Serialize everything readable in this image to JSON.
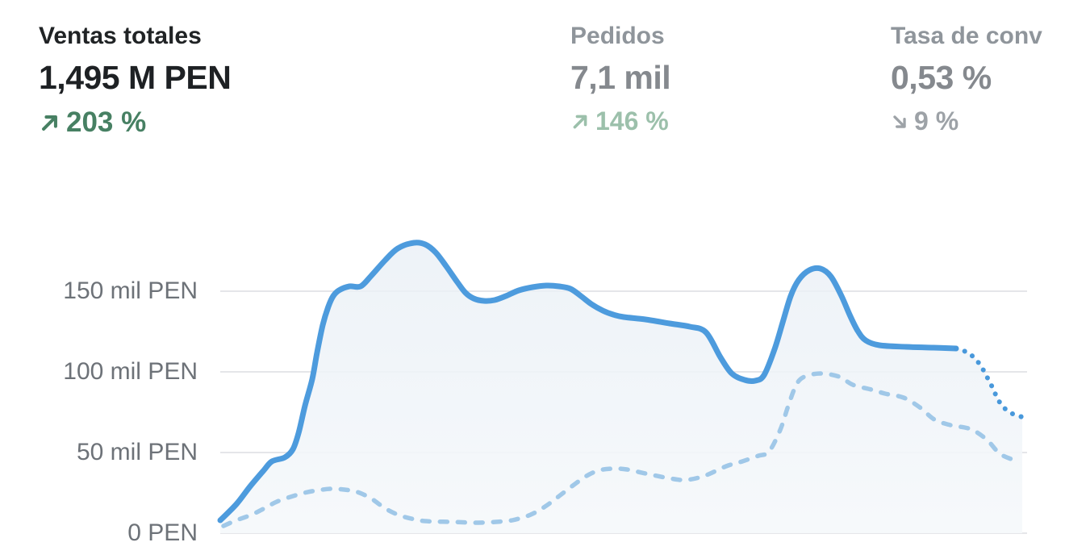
{
  "metrics": [
    {
      "id": "total-sales",
      "label": "Ventas totales",
      "value": "1,495 M PEN",
      "delta": "203 %",
      "trend": "up",
      "emphasis": "primary"
    },
    {
      "id": "orders",
      "label": "Pedidos",
      "value": "7,1 mil",
      "delta": "146 %",
      "trend": "up",
      "emphasis": "muted"
    },
    {
      "id": "conversion-rate",
      "label": "Tasa de conv",
      "value": "0,53 %",
      "delta": "9 %",
      "trend": "down",
      "emphasis": "muted"
    }
  ],
  "chart_data": {
    "type": "line",
    "title": "Ventas totales",
    "xlabel": "",
    "ylabel": "",
    "y_unit": "mil PEN",
    "ylim": [
      0,
      185
    ],
    "x_range": [
      0,
      1
    ],
    "grid": true,
    "legend_position": "none",
    "yticks": [
      {
        "value": 0,
        "label": "0 PEN"
      },
      {
        "value": 50,
        "label": "50 mil PEN"
      },
      {
        "value": 100,
        "label": "100 mil PEN"
      },
      {
        "value": 150,
        "label": "150 mil PEN"
      }
    ],
    "series": [
      {
        "name": "current_period",
        "style": "solid",
        "color": "#4d9bdd",
        "fill": true,
        "points": [
          [
            0.0,
            8
          ],
          [
            0.02,
            18
          ],
          [
            0.037,
            29
          ],
          [
            0.054,
            39
          ],
          [
            0.064,
            44.5
          ],
          [
            0.08,
            47
          ],
          [
            0.09,
            52
          ],
          [
            0.097,
            62
          ],
          [
            0.105,
            79
          ],
          [
            0.114,
            95.5
          ],
          [
            0.12,
            112
          ],
          [
            0.127,
            129
          ],
          [
            0.134,
            140.5
          ],
          [
            0.14,
            147
          ],
          [
            0.147,
            150.5
          ],
          [
            0.16,
            153
          ],
          [
            0.174,
            153
          ],
          [
            0.187,
            159.5
          ],
          [
            0.204,
            169
          ],
          [
            0.22,
            176.5
          ],
          [
            0.24,
            180
          ],
          [
            0.254,
            179
          ],
          [
            0.267,
            174
          ],
          [
            0.28,
            165.5
          ],
          [
            0.294,
            155.5
          ],
          [
            0.304,
            149
          ],
          [
            0.314,
            145.5
          ],
          [
            0.327,
            144
          ],
          [
            0.34,
            144.5
          ],
          [
            0.354,
            147
          ],
          [
            0.37,
            150.5
          ],
          [
            0.387,
            152.5
          ],
          [
            0.404,
            153.5
          ],
          [
            0.42,
            153
          ],
          [
            0.434,
            151.5
          ],
          [
            0.447,
            147
          ],
          [
            0.46,
            142
          ],
          [
            0.474,
            138
          ],
          [
            0.487,
            135.5
          ],
          [
            0.5,
            134
          ],
          [
            0.527,
            132.5
          ],
          [
            0.557,
            130
          ],
          [
            0.582,
            128
          ],
          [
            0.602,
            124.5
          ],
          [
            0.62,
            109
          ],
          [
            0.634,
            99
          ],
          [
            0.65,
            95
          ],
          [
            0.663,
            94.5
          ],
          [
            0.674,
            98
          ],
          [
            0.687,
            114
          ],
          [
            0.697,
            130.5
          ],
          [
            0.707,
            147
          ],
          [
            0.717,
            157
          ],
          [
            0.73,
            163
          ],
          [
            0.744,
            164
          ],
          [
            0.757,
            159
          ],
          [
            0.77,
            147
          ],
          [
            0.78,
            135.5
          ],
          [
            0.79,
            125.5
          ],
          [
            0.8,
            119.5
          ],
          [
            0.817,
            116.5
          ],
          [
            0.85,
            115.5
          ],
          [
            0.884,
            115
          ],
          [
            0.912,
            114.5
          ]
        ]
      },
      {
        "name": "current_period_projection",
        "style": "dotted",
        "color": "#4898db",
        "fill": true,
        "points": [
          [
            0.912,
            114.5
          ],
          [
            0.924,
            112.5
          ],
          [
            0.934,
            109
          ],
          [
            0.943,
            103.5
          ],
          [
            0.949,
            98
          ],
          [
            0.955,
            92.5
          ],
          [
            0.96,
            87
          ],
          [
            0.965,
            82
          ],
          [
            0.972,
            77.5
          ],
          [
            0.982,
            74
          ],
          [
            0.994,
            72
          ]
        ]
      },
      {
        "name": "previous_period",
        "style": "dashed",
        "color": "#a0c8e8",
        "fill": false,
        "points": [
          [
            0.004,
            4.5
          ],
          [
            0.02,
            8
          ],
          [
            0.039,
            11.5
          ],
          [
            0.055,
            15.5
          ],
          [
            0.07,
            19.5
          ],
          [
            0.087,
            22.5
          ],
          [
            0.104,
            25
          ],
          [
            0.12,
            26.5
          ],
          [
            0.137,
            27.5
          ],
          [
            0.154,
            27
          ],
          [
            0.17,
            25.5
          ],
          [
            0.187,
            21.5
          ],
          [
            0.204,
            15.5
          ],
          [
            0.22,
            11.5
          ],
          [
            0.237,
            9
          ],
          [
            0.254,
            7.5
          ],
          [
            0.287,
            7
          ],
          [
            0.32,
            6.5
          ],
          [
            0.354,
            7.5
          ],
          [
            0.37,
            9
          ],
          [
            0.387,
            12
          ],
          [
            0.404,
            17
          ],
          [
            0.42,
            23
          ],
          [
            0.437,
            29.5
          ],
          [
            0.454,
            35.5
          ],
          [
            0.47,
            39
          ],
          [
            0.487,
            40
          ],
          [
            0.504,
            39.5
          ],
          [
            0.527,
            37
          ],
          [
            0.557,
            34
          ],
          [
            0.577,
            33
          ],
          [
            0.6,
            35.5
          ],
          [
            0.627,
            41.5
          ],
          [
            0.647,
            44.5
          ],
          [
            0.667,
            48
          ],
          [
            0.68,
            50.5
          ],
          [
            0.694,
            64
          ],
          [
            0.704,
            79
          ],
          [
            0.714,
            92
          ],
          [
            0.724,
            97
          ],
          [
            0.744,
            99
          ],
          [
            0.767,
            97
          ],
          [
            0.784,
            92
          ],
          [
            0.807,
            89
          ],
          [
            0.824,
            86.5
          ],
          [
            0.847,
            84
          ],
          [
            0.867,
            78
          ],
          [
            0.885,
            70.5
          ],
          [
            0.905,
            67
          ],
          [
            0.93,
            64.5
          ],
          [
            0.95,
            58
          ],
          [
            0.967,
            49
          ],
          [
            0.989,
            44.5
          ]
        ]
      }
    ]
  },
  "colors": {
    "page_background": "#ffffff",
    "primary_text": "#1e2124",
    "muted_text": "#8f959b",
    "axis_text": "#6d7278",
    "gridline": "#e5e6e9",
    "line_blue": "#4d9bdd",
    "comparison_blue": "#a0c8e8",
    "positive_green": "#478063",
    "muted_green": "#9cc0ab",
    "muted_gray_delta": "#9da2a7",
    "area_fill_top": "#e9eff6",
    "area_fill_bottom": "#f6f9fb"
  }
}
